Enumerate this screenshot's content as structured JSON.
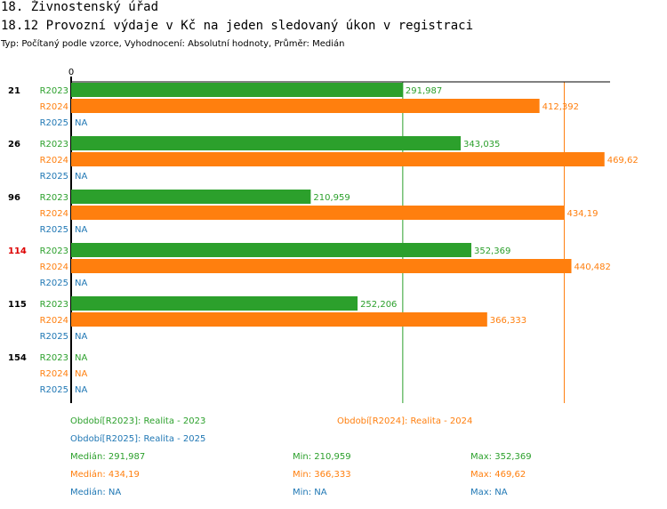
{
  "header": {
    "title": "18. Živnostenský úřad",
    "subtitle": "18.12 Provozní výdaje v Kč na jeden sledovaný úkon v registraci",
    "meta": "Typ: Počítaný podle vzorce, Vyhodnocení: Absolutní hodnoty, Průměr: Medián"
  },
  "colors": {
    "r2023": "#2ca02c",
    "r2024": "#ff7f0e",
    "r2025": "#1f77b4",
    "highlight": "#dd0000"
  },
  "chart_data": {
    "type": "bar",
    "orientation": "horizontal",
    "axis_zero_label": "0",
    "xlim": [
      0,
      480
    ],
    "categories": [
      "21",
      "26",
      "96",
      "114",
      "115",
      "154"
    ],
    "highlight_category": "114",
    "series": [
      {
        "name": "R2023",
        "values": [
          291.987,
          343.035,
          210.959,
          352.369,
          252.206,
          null
        ],
        "labels": [
          "291,987",
          "343,035",
          "210,959",
          "352,369",
          "252,206",
          "NA"
        ]
      },
      {
        "name": "R2024",
        "values": [
          412.392,
          469.62,
          434.19,
          440.482,
          366.333,
          null
        ],
        "labels": [
          "412,392",
          "469,62",
          "434,19",
          "440,482",
          "366,333",
          "NA"
        ]
      },
      {
        "name": "R2025",
        "values": [
          null,
          null,
          null,
          null,
          null,
          null
        ],
        "labels": [
          "NA",
          "NA",
          "NA",
          "NA",
          "NA",
          "NA"
        ]
      }
    ],
    "reference_lines": [
      {
        "series": "R2023",
        "value": 291.987
      },
      {
        "series": "R2024",
        "value": 434.19
      }
    ]
  },
  "legend": {
    "r2023": "Období[R2023]: Realita - 2023",
    "r2024": "Období[R2024]: Realita - 2024",
    "r2025": "Období[R2025]: Realita - 2025"
  },
  "stats": {
    "r2023": {
      "median": "Medián: 291,987",
      "min": "Min: 210,959",
      "max": "Max: 352,369"
    },
    "r2024": {
      "median": "Medián: 434,19",
      "min": "Min: 366,333",
      "max": "Max: 469,62"
    },
    "r2025": {
      "median": "Medián: NA",
      "min": "Min: NA",
      "max": "Max: NA"
    }
  }
}
